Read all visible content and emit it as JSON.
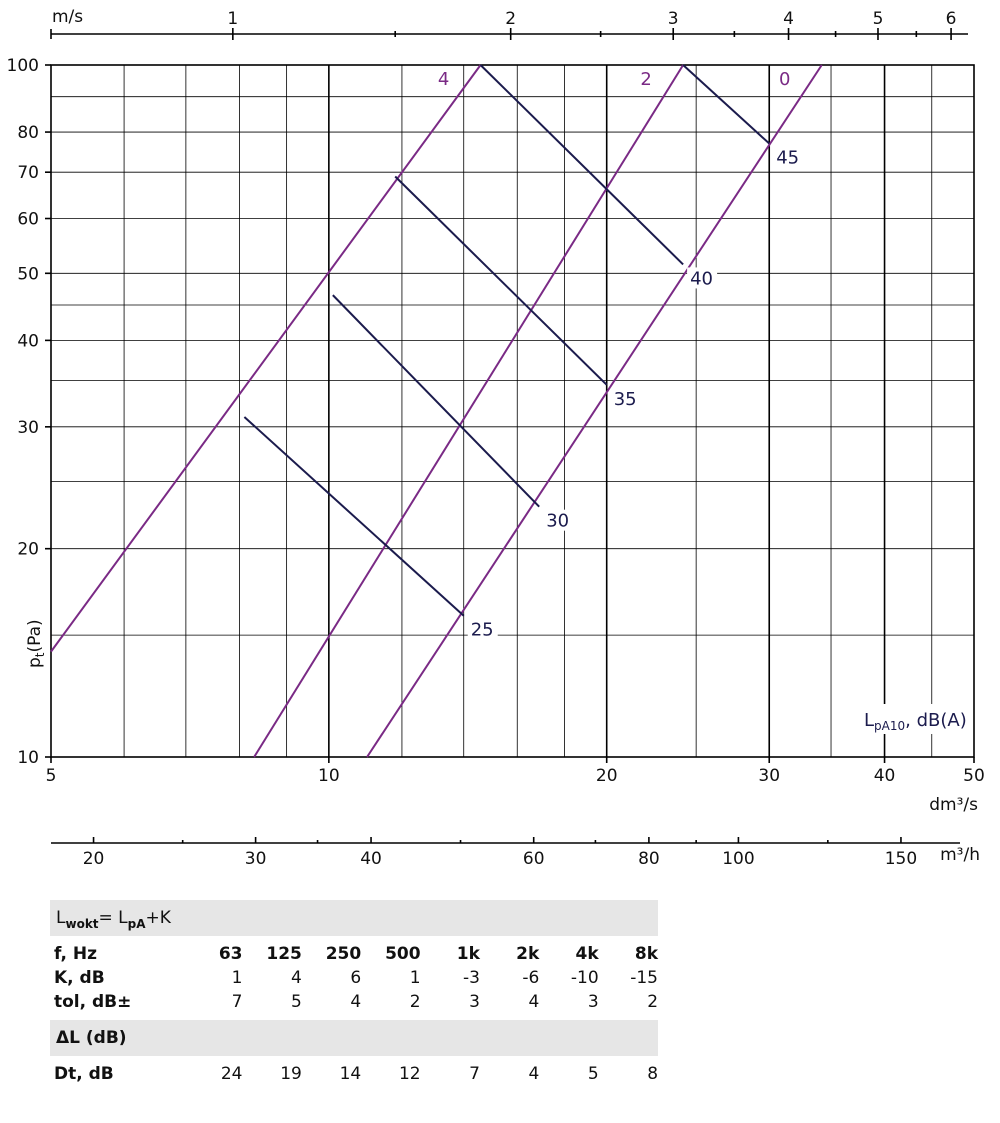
{
  "chart_data": {
    "type": "line",
    "x_axis": {
      "scale": "log",
      "range": [
        5,
        50
      ],
      "unit": "dm³/s",
      "ticks": [
        "5",
        "10",
        "20",
        "30",
        "40",
        "50"
      ],
      "minor": [
        6,
        7,
        8,
        9,
        12,
        14,
        16,
        18,
        25,
        35,
        45
      ]
    },
    "y_axis": {
      "scale": "log",
      "range": [
        10,
        100
      ],
      "label": "pt(Pa)",
      "ticks": [
        "10",
        "20",
        "30",
        "40",
        "50",
        "60",
        "70",
        "80",
        "100"
      ],
      "minor": [
        15,
        25,
        35,
        45,
        90
      ]
    },
    "top_axis": {
      "unit": "m/s",
      "ticks": [
        {
          "label": "1",
          "x": 7.87
        },
        {
          "label": "2",
          "x": 15.74
        },
        {
          "label": "3",
          "x": 23.61
        },
        {
          "label": "4",
          "x": 31.48
        },
        {
          "label": "5",
          "x": 39.35
        },
        {
          "label": "6",
          "x": 47.22
        }
      ],
      "minor": [
        11.8,
        19.7,
        27.5,
        35.4,
        43.3
      ]
    },
    "bottom_axis": {
      "unit": "m³/h",
      "ticks": [
        {
          "label": "20",
          "x": 5.56
        },
        {
          "label": "30",
          "x": 8.33
        },
        {
          "label": "40",
          "x": 11.11
        },
        {
          "label": "60",
          "x": 16.67
        },
        {
          "label": "80",
          "x": 22.22
        },
        {
          "label": "100",
          "x": 27.78
        },
        {
          "label": "150",
          "x": 41.67
        }
      ],
      "minor": [
        25,
        35,
        50,
        70,
        90,
        125
      ]
    },
    "series_label": "LpA10, dB(A)",
    "pressure_lines": [
      {
        "name": "4",
        "points": [
          [
            5,
            14.2
          ],
          [
            14.6,
            100
          ]
        ]
      },
      {
        "name": "2",
        "points": [
          [
            8.3,
            10
          ],
          [
            24.2,
            100
          ]
        ]
      },
      {
        "name": "0",
        "points": [
          [
            11.0,
            10
          ],
          [
            34.2,
            100
          ]
        ]
      }
    ],
    "noise_lines": [
      {
        "name": "25",
        "points": [
          [
            8.1,
            31.0
          ],
          [
            14.0,
            16.0
          ]
        ]
      },
      {
        "name": "30",
        "points": [
          [
            10.1,
            46.5
          ],
          [
            16.9,
            23.0
          ]
        ]
      },
      {
        "name": "35",
        "points": [
          [
            11.8,
            69.0
          ],
          [
            20.0,
            34.5
          ]
        ]
      },
      {
        "name": "40",
        "points": [
          [
            14.6,
            100
          ],
          [
            24.2,
            51.5
          ]
        ]
      },
      {
        "name": "45",
        "points": [
          [
            24.2,
            100
          ],
          [
            30.0,
            77.0
          ]
        ]
      }
    ]
  },
  "table": {
    "formula": {
      "base": "L",
      "sub1": "wokt",
      "mid": "= L",
      "sub2": "pA",
      "tail": "+K"
    },
    "header": {
      "label": "f, Hz",
      "values": [
        "63",
        "125",
        "250",
        "500",
        "1k",
        "2k",
        "4k",
        "8k"
      ]
    },
    "k_row": {
      "label": "K, dB",
      "values": [
        "1",
        "4",
        "6",
        "1",
        "-3",
        "-6",
        "-10",
        "-15"
      ]
    },
    "tol_row": {
      "label": "tol, dB±",
      "values": [
        "7",
        "5",
        "4",
        "2",
        "3",
        "4",
        "3",
        "2"
      ]
    },
    "delta_title": "ΔL (dB)",
    "dt_row": {
      "label": "Dt, dB",
      "values": [
        "24",
        "19",
        "14",
        "12",
        "7",
        "4",
        "5",
        "8"
      ]
    }
  }
}
